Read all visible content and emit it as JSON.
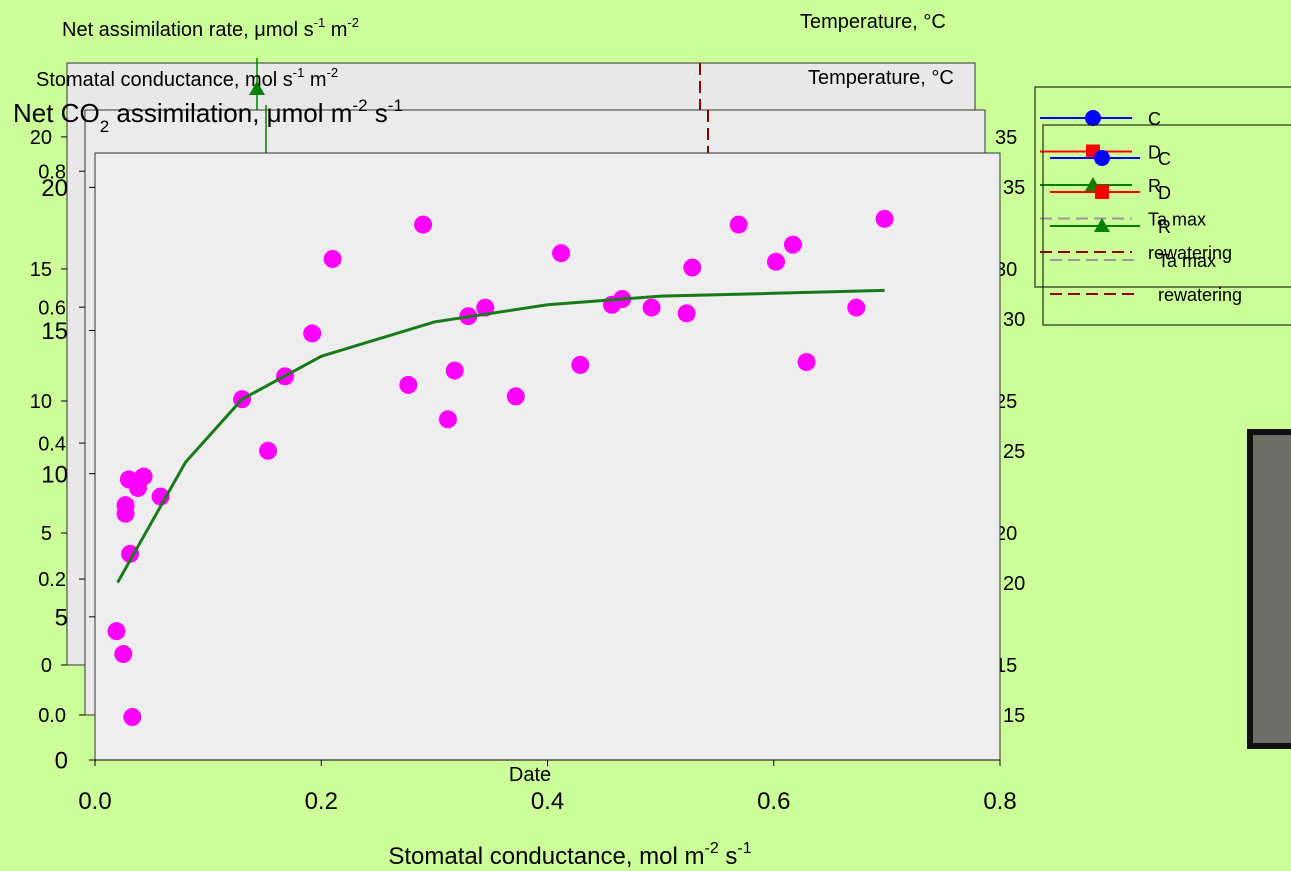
{
  "chart_data": [
    {
      "type": "line",
      "title": [
        "Net assimilation rate, μmol s",
        "-1",
        " m",
        "-2"
      ],
      "y2label": "Temperature, °C",
      "ylim": [
        0,
        22.8
      ],
      "yticks": [
        0,
        5,
        10,
        15,
        20
      ],
      "y2lim": [
        15,
        37.8
      ],
      "y2ticks": [
        15,
        20,
        25,
        30,
        35
      ],
      "series": [
        {
          "name": "C",
          "color": "#0000ff",
          "marker": "circle"
        },
        {
          "name": "D",
          "color": "#ff0000",
          "marker": "square"
        },
        {
          "name": "R",
          "color": "#008000",
          "marker": "triangle"
        },
        {
          "name": "Ta max",
          "color": "#999999",
          "dashed": true
        },
        {
          "name": "rewatering",
          "color": "#8b0000",
          "dashed": true
        }
      ]
    },
    {
      "type": "line",
      "title": [
        "Stomatal conductance, mol s",
        "-1",
        " m",
        "-2"
      ],
      "y2label": "Temperature, °C",
      "xlabel": "Date",
      "ylim": [
        0,
        0.89
      ],
      "yticks": [
        {
          "value": 0,
          "label": "0.0"
        },
        0.2,
        0.4,
        0.6,
        0.8
      ],
      "y2lim": [
        15,
        37.9
      ],
      "y2ticks": [
        15,
        20,
        25,
        30,
        35
      ],
      "series": [
        {
          "name": "C",
          "color": "#0000ff",
          "marker": "circle"
        },
        {
          "name": "D",
          "color": "#ff0000",
          "marker": "square"
        },
        {
          "name": "R",
          "color": "#008000",
          "marker": "triangle"
        },
        {
          "name": "Ta max",
          "color": "#999999",
          "dashed": true
        },
        {
          "name": "rewatering",
          "color": "#8b0000",
          "dashed": true
        }
      ]
    },
    {
      "type": "scatter",
      "ylabel": [
        "Net CO",
        "2",
        " assimilation, μmol m",
        "-2",
        " s",
        "-1"
      ],
      "xlabel": [
        "Stomatal conductance, mol m",
        "-2",
        " s",
        "-1"
      ],
      "xlim": [
        0,
        0.8
      ],
      "xticks": [
        {
          "value": 0,
          "label": "0.0"
        },
        0.2,
        0.4,
        0.6,
        0.8
      ],
      "ylim": [
        0,
        21.2
      ],
      "yticks": [
        0,
        5,
        10,
        15,
        20
      ],
      "color": "#ff00ff",
      "x": [
        0.019,
        0.025,
        0.033,
        0.027,
        0.027,
        0.03,
        0.038,
        0.043,
        0.031,
        0.058,
        0.13,
        0.153,
        0.168,
        0.192,
        0.21,
        0.277,
        0.29,
        0.312,
        0.318,
        0.33,
        0.345,
        0.372,
        0.412,
        0.429,
        0.457,
        0.466,
        0.492,
        0.523,
        0.528,
        0.569,
        0.602,
        0.617,
        0.629,
        0.673,
        0.698
      ],
      "values": [
        4.5,
        3.7,
        1.5,
        8.6,
        8.9,
        9.8,
        9.5,
        9.9,
        7.2,
        9.2,
        12.6,
        10.8,
        13.4,
        14.9,
        17.5,
        13.1,
        18.7,
        11.9,
        13.6,
        15.5,
        15.8,
        12.7,
        17.7,
        13.8,
        15.9,
        16.1,
        15.8,
        15.6,
        17.2,
        18.7,
        17.4,
        18.0,
        13.9,
        15.8,
        18.9
      ],
      "fit_line": {
        "color": "#1a7a1a",
        "x": [
          0.02,
          0.05,
          0.08,
          0.13,
          0.2,
          0.3,
          0.4,
          0.5,
          0.6,
          0.698
        ],
        "values": [
          6.2,
          8.3,
          10.4,
          12.6,
          14.1,
          15.3,
          15.9,
          16.2,
          16.3,
          16.4
        ]
      }
    }
  ]
}
